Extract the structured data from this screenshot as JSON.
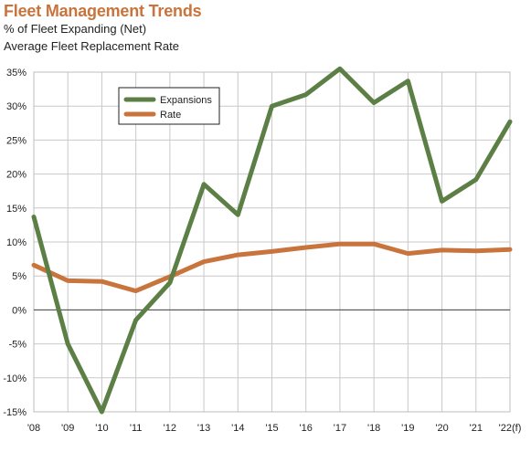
{
  "chart_data": {
    "type": "line",
    "title": "Fleet Management Trends",
    "subtitle_lines": [
      "% of Fleet Expanding (Net)",
      "Average Fleet Replacement Rate"
    ],
    "categories": [
      "'08",
      "'09",
      "'10",
      "'11",
      "'12",
      "'13",
      "'14",
      "'15",
      "'16",
      "'17",
      "'18",
      "'19",
      "'20",
      "'21",
      "'22(f)"
    ],
    "y_ticks": [
      "35%",
      "30%",
      "25%",
      "20%",
      "15%",
      "10%",
      "5%",
      "0%",
      "-5%",
      "-10%",
      "-15%"
    ],
    "ylim": [
      -15,
      35
    ],
    "grid": true,
    "legend_position": "top-left",
    "series": [
      {
        "name": "Expansions",
        "color": "#5b7f45",
        "values": [
          13.7,
          -5,
          -15,
          -1.5,
          4,
          18.5,
          14,
          30,
          31.7,
          35.5,
          30.5,
          33.7,
          16,
          19.2,
          27.7
        ]
      },
      {
        "name": "Rate",
        "color": "#c8743c",
        "values": [
          6.6,
          4.3,
          4.2,
          2.8,
          4.9,
          7.1,
          8.1,
          8.6,
          9.2,
          9.7,
          9.7,
          8.3,
          8.8,
          8.7,
          8.9
        ]
      }
    ]
  }
}
